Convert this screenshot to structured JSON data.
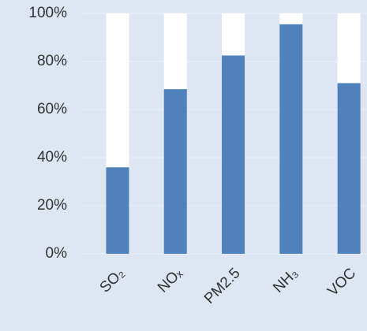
{
  "chart_data": {
    "type": "stacked_bar",
    "categories": [
      "SO₂",
      "NOₓ",
      "PM2.5",
      "NH₃",
      "VOC"
    ],
    "series": [
      {
        "color": "#4f81bd",
        "values": [
          36,
          68.5,
          82.5,
          95.5,
          71
        ]
      },
      {
        "color": "#ffffff",
        "values": [
          64,
          31.5,
          17.5,
          4.5,
          29
        ]
      }
    ],
    "ylim": [
      0,
      100
    ],
    "yticks": [
      {
        "value": 0,
        "label": "0%"
      },
      {
        "value": 20,
        "label": "20%"
      },
      {
        "value": 40,
        "label": "40%"
      },
      {
        "value": 60,
        "label": "60%"
      },
      {
        "value": 80,
        "label": "80%"
      },
      {
        "value": 100,
        "label": "100%"
      }
    ],
    "grid": true
  }
}
